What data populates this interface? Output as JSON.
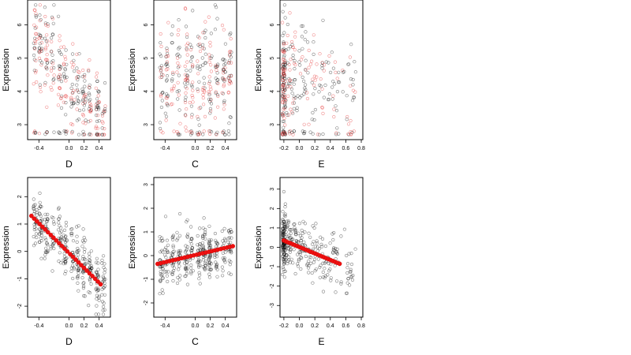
{
  "chart_data": [
    {
      "type": "scatter",
      "panel": "top-left",
      "xlabel": "D",
      "ylabel": "Expression",
      "xlim": [
        -0.55,
        0.55
      ],
      "ylim": [
        2.55,
        6.75
      ],
      "xticks": [
        -0.4,
        0.0,
        0.2,
        0.4
      ],
      "xtick_labels": [
        "-0.4",
        "0.0",
        "0.2",
        "0.4"
      ],
      "yticks": [
        3,
        4,
        5,
        6
      ],
      "ytick_labels": [
        "3",
        "4",
        "5",
        "6"
      ],
      "trend": [
        [
          -0.5,
          5.55
        ],
        [
          -0.35,
          5.3
        ],
        [
          -0.2,
          5.0
        ],
        [
          -0.05,
          4.5
        ],
        [
          0.05,
          4.3
        ],
        [
          0.15,
          4.0
        ],
        [
          0.3,
          3.55
        ],
        [
          0.45,
          3.0
        ]
      ],
      "spread": 0.6,
      "n_points": 330,
      "clip": [
        2.7,
        6.6
      ],
      "series_colors": {
        "black": "#000000",
        "red": "#e84040"
      }
    },
    {
      "type": "scatter",
      "panel": "top-middle",
      "xlabel": "C",
      "ylabel": "Expression",
      "xlim": [
        -0.55,
        0.55
      ],
      "ylim": [
        2.55,
        6.75
      ],
      "xticks": [
        -0.4,
        0.0,
        0.2,
        0.4
      ],
      "xtick_labels": [
        "-0.4",
        "0.0",
        "0.2",
        "0.4"
      ],
      "yticks": [
        3,
        4,
        5,
        6
      ],
      "ytick_labels": [
        "3",
        "4",
        "5",
        "6"
      ],
      "trend": [
        [
          -0.5,
          4.2
        ],
        [
          -0.25,
          4.35
        ],
        [
          0.0,
          4.45
        ],
        [
          0.25,
          4.5
        ],
        [
          0.5,
          4.6
        ]
      ],
      "spread": 0.85,
      "n_points": 330,
      "clip": [
        2.7,
        6.6
      ],
      "series_colors": {
        "black": "#000000",
        "red": "#e84040"
      }
    },
    {
      "type": "scatter",
      "panel": "top-right",
      "xlabel": "E",
      "ylabel": "Expression",
      "xlim": [
        -0.25,
        0.82
      ],
      "ylim": [
        2.55,
        6.75
      ],
      "xticks": [
        -0.2,
        0.0,
        0.2,
        0.4,
        0.6,
        0.8
      ],
      "xtick_labels": [
        "-0.2",
        "0.0",
        "0.2",
        "0.4",
        "0.6",
        "0.8"
      ],
      "yticks": [
        3,
        4,
        5,
        6
      ],
      "ytick_labels": [
        "3",
        "4",
        "5",
        "6"
      ],
      "trend": [
        [
          -0.22,
          4.3
        ],
        [
          0.0,
          4.5
        ],
        [
          0.2,
          4.4
        ],
        [
          0.4,
          4.1
        ],
        [
          0.6,
          3.9
        ],
        [
          0.8,
          4.2
        ]
      ],
      "spread": 0.85,
      "n_points": 330,
      "clip": [
        2.7,
        6.6
      ],
      "series_colors": {
        "black": "#000000",
        "red": "#e84040"
      }
    },
    {
      "type": "scatter",
      "panel": "bottom-left",
      "xlabel": "D",
      "ylabel": "Expression",
      "xlim": [
        -0.55,
        0.55
      ],
      "ylim": [
        -2.4,
        2.7
      ],
      "xticks": [
        -0.4,
        0.0,
        0.2,
        0.4
      ],
      "xtick_labels": [
        "-0.4",
        "0.0",
        "0.2",
        "0.4"
      ],
      "yticks": [
        -2,
        -1,
        0,
        1,
        2
      ],
      "ytick_labels": [
        "-2",
        "-1",
        "0",
        "1",
        "2"
      ],
      "fit_line": [
        [
          -0.5,
          1.3
        ],
        [
          0.42,
          -1.2
        ]
      ],
      "spread": 0.55,
      "n_points": 330,
      "clip": [
        -2.3,
        2.5
      ],
      "series_colors": {
        "black": "#000000",
        "red": "#ee1111"
      }
    },
    {
      "type": "scatter",
      "panel": "bottom-middle",
      "xlabel": "C",
      "ylabel": "Expression",
      "xlim": [
        -0.55,
        0.55
      ],
      "ylim": [
        -2.6,
        3.3
      ],
      "xticks": [
        -0.4,
        0.0,
        0.2,
        0.4
      ],
      "xtick_labels": [
        "-0.4",
        "0.0",
        "0.2",
        "0.4"
      ],
      "yticks": [
        -2,
        -1,
        0,
        1,
        2,
        3
      ],
      "ytick_labels": [
        "-2",
        "-1",
        "0",
        "1",
        "2",
        "3"
      ],
      "fit_line": [
        [
          -0.5,
          -0.35
        ],
        [
          0.5,
          0.4
        ]
      ],
      "spread": 0.6,
      "n_points": 330,
      "clip": [
        -2.5,
        3.1
      ],
      "series_colors": {
        "black": "#000000",
        "red": "#ee1111"
      }
    },
    {
      "type": "scatter",
      "panel": "bottom-right",
      "xlabel": "E",
      "ylabel": "Expression",
      "xlim": [
        -0.25,
        0.82
      ],
      "ylim": [
        -3.6,
        3.6
      ],
      "xticks": [
        -0.2,
        0.0,
        0.2,
        0.4,
        0.6,
        0.8
      ],
      "xtick_labels": [
        "-0.2",
        "0.0",
        "0.2",
        "0.4",
        "0.6",
        "0.8"
      ],
      "yticks": [
        -3,
        -2,
        -1,
        0,
        1,
        2,
        3
      ],
      "ytick_labels": [
        "-3",
        "-2",
        "-1",
        "0",
        "1",
        "2",
        "3"
      ],
      "fit_line": [
        [
          -0.2,
          0.35
        ],
        [
          0.52,
          -0.85
        ]
      ],
      "spread": 0.7,
      "n_points": 330,
      "clip": [
        -3.3,
        3.2
      ],
      "series_colors": {
        "black": "#000000",
        "red": "#ee1111"
      }
    }
  ]
}
